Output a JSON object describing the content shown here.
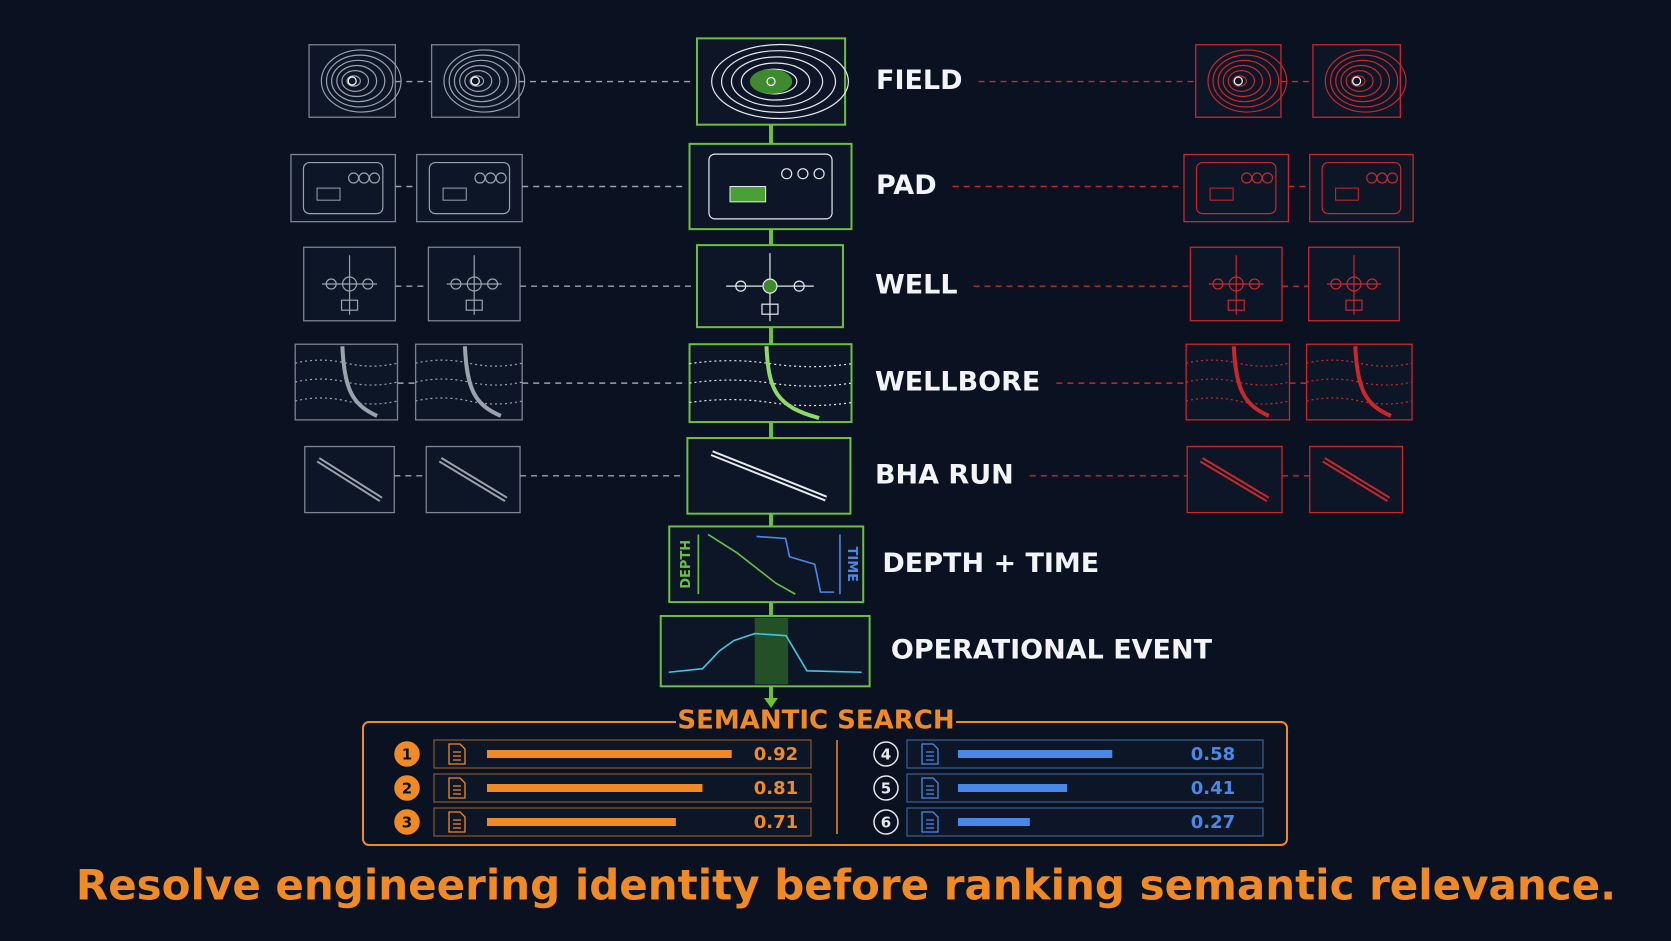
{
  "levels": [
    {
      "label": "FIELD"
    },
    {
      "label": "PAD"
    },
    {
      "label": "WELL"
    },
    {
      "label": "WELLBORE"
    },
    {
      "label": "BHA RUN"
    },
    {
      "label": "DEPTH + TIME",
      "depth_label": "DEPTH",
      "time_label": "TIME"
    },
    {
      "label": "OPERATIONAL EVENT"
    }
  ],
  "search": {
    "title": "SEMANTIC SEARCH",
    "results": [
      {
        "rank": 1,
        "score": 0.92
      },
      {
        "rank": 2,
        "score": 0.81
      },
      {
        "rank": 3,
        "score": 0.71
      },
      {
        "rank": 4,
        "score": 0.58
      },
      {
        "rank": 5,
        "score": 0.41
      },
      {
        "rank": 6,
        "score": 0.27
      }
    ]
  },
  "footer": "Resolve engineering identity before ranking semantic relevance."
}
